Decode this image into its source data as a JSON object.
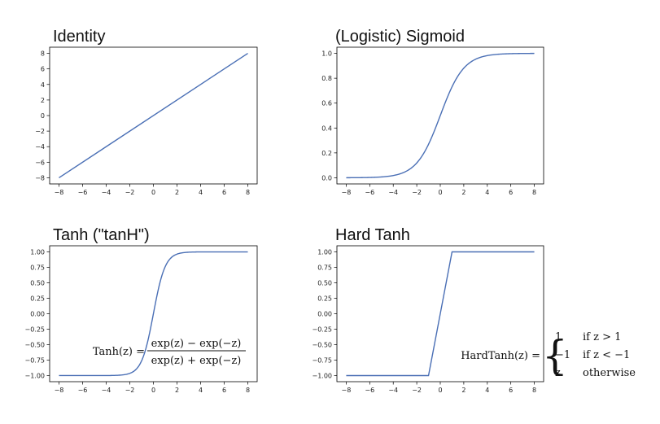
{
  "chart_data": [
    {
      "type": "line",
      "title": "Identity",
      "xlabel": "",
      "ylabel": "",
      "xlim": [
        -8,
        8
      ],
      "ylim": [
        -8,
        8
      ],
      "xticks": [
        -8,
        -6,
        -4,
        -2,
        0,
        2,
        4,
        6,
        8
      ],
      "yticks": [
        -8,
        -6,
        -4,
        -2,
        0,
        2,
        4,
        6,
        8
      ],
      "function": "identity",
      "x": [
        -8,
        8
      ],
      "y": [
        -8,
        8
      ],
      "color": "#4a6fb5",
      "grid": false
    },
    {
      "type": "line",
      "title": "(Logistic) Sigmoid",
      "xlabel": "",
      "ylabel": "",
      "xlim": [
        -8,
        8
      ],
      "ylim": [
        0,
        1
      ],
      "xticks": [
        -8,
        -6,
        -4,
        -2,
        0,
        2,
        4,
        6,
        8
      ],
      "yticks": [
        0.0,
        0.2,
        0.4,
        0.6,
        0.8,
        1.0
      ],
      "ytick_labels": [
        "0.0",
        "0.2",
        "0.4",
        "0.6",
        "0.8",
        "1.0"
      ],
      "function": "sigmoid",
      "x": [
        -8,
        -6,
        -4,
        -2,
        0,
        2,
        4,
        6,
        8
      ],
      "y": [
        0.0003,
        0.0025,
        0.018,
        0.119,
        0.5,
        0.881,
        0.982,
        0.9975,
        0.9997
      ],
      "color": "#4a6fb5",
      "grid": false
    },
    {
      "type": "line",
      "title": "Tanh (\"tanH\")",
      "xlabel": "",
      "ylabel": "",
      "xlim": [
        -8,
        8
      ],
      "ylim": [
        -1,
        1
      ],
      "xticks": [
        -8,
        -6,
        -4,
        -2,
        0,
        2,
        4,
        6,
        8
      ],
      "yticks": [
        -1.0,
        -0.75,
        -0.5,
        -0.25,
        0.0,
        0.25,
        0.5,
        0.75,
        1.0
      ],
      "ytick_labels": [
        "-1.00",
        "-0.75",
        "-0.50",
        "-0.25",
        "0.00",
        "0.25",
        "0.50",
        "0.75",
        "1.00"
      ],
      "function": "tanh",
      "x": [
        -8,
        -4,
        -2,
        -1,
        0,
        1,
        2,
        4,
        8
      ],
      "y": [
        -1.0,
        -0.999,
        -0.964,
        -0.762,
        0.0,
        0.762,
        0.964,
        0.999,
        1.0
      ],
      "color": "#4a6fb5",
      "grid": false,
      "annotation": {
        "lhs": "Tanh(z) =",
        "numerator": "exp(z) − exp(−z)",
        "denominator": "exp(z) + exp(−z)"
      }
    },
    {
      "type": "line",
      "title": "Hard Tanh",
      "xlabel": "",
      "ylabel": "",
      "xlim": [
        -8,
        8
      ],
      "ylim": [
        -1,
        1
      ],
      "xticks": [
        -8,
        -6,
        -4,
        -2,
        0,
        2,
        4,
        6,
        8
      ],
      "yticks": [
        -1.0,
        -0.75,
        -0.5,
        -0.25,
        0.0,
        0.25,
        0.5,
        0.75,
        1.0
      ],
      "ytick_labels": [
        "-1.00",
        "-0.75",
        "-0.50",
        "-0.25",
        "0.00",
        "0.25",
        "0.50",
        "0.75",
        "1.00"
      ],
      "function": "hardtanh",
      "x": [
        -8,
        -1,
        1,
        8
      ],
      "y": [
        -1,
        -1,
        1,
        1
      ],
      "color": "#4a6fb5",
      "grid": false,
      "annotation": {
        "lhs": "HardTanh(z) =",
        "cases": [
          {
            "value": "1",
            "condition": "if z > 1"
          },
          {
            "value": "−1",
            "condition": "if z < −1"
          },
          {
            "value": "z",
            "condition": "otherwise"
          }
        ]
      }
    }
  ]
}
